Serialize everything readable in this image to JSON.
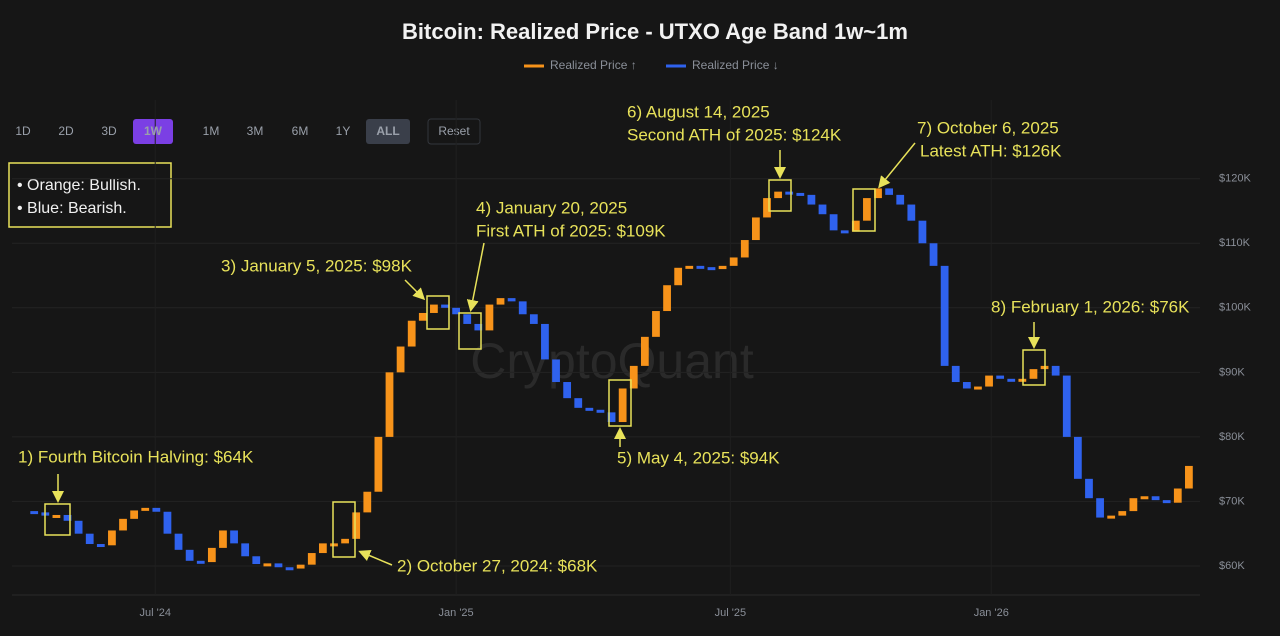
{
  "chart_data": {
    "type": "candlestick",
    "title": "Bitcoin: Realized Price - UTXO Age Band 1w~1m",
    "series": [
      {
        "name": "Realized Price ↑",
        "color": "#f7931a"
      },
      {
        "name": "Realized Price ↓",
        "color": "#2f62ee"
      }
    ],
    "values": [
      68500,
      68300,
      67800,
      67900,
      67000,
      65000,
      63400,
      63200,
      65500,
      67300,
      68600,
      69000,
      68400,
      65000,
      62500,
      60800,
      60600,
      62800,
      65500,
      63500,
      61500,
      60300,
      60400,
      59800,
      59600,
      60200,
      62000,
      63500,
      63500,
      64200,
      68300,
      71500,
      80000,
      90000,
      94000,
      98000,
      99200,
      100500,
      100000,
      99000,
      97500,
      96500,
      100500,
      101500,
      101000,
      99000,
      97500,
      92000,
      88500,
      86000,
      84500,
      84200,
      83800,
      82300,
      87500,
      91000,
      95500,
      99500,
      103500,
      106200,
      106500,
      106300,
      106000,
      106500,
      107800,
      110500,
      114000,
      117000,
      118000,
      117800,
      117500,
      116000,
      114500,
      112000,
      111800,
      113500,
      117000,
      118500,
      117500,
      116000,
      113500,
      110000,
      106500,
      91000,
      88500,
      87500,
      87800,
      89500,
      89000,
      88800,
      89000,
      90500,
      91000,
      89500,
      80000,
      73500,
      70500,
      67500,
      67800,
      68500,
      70500,
      70800,
      70200,
      69800,
      72000,
      75500
    ],
    "xlim": [
      -1,
      106
    ],
    "xticks": [
      {
        "value": 11.9,
        "label": "Jul '24"
      },
      {
        "value": 39,
        "label": "Jan '25"
      },
      {
        "value": 63.7,
        "label": "Jul '25"
      },
      {
        "value": 87.2,
        "label": "Jan '26"
      }
    ],
    "ylim": [
      55500,
      132200
    ],
    "yticks": [
      {
        "value": 60000,
        "label": "$60K"
      },
      {
        "value": 70000,
        "label": "$70K"
      },
      {
        "value": 80000,
        "label": "$80K"
      },
      {
        "value": 90000,
        "label": "$90K"
      },
      {
        "value": 100000,
        "label": "$100K"
      },
      {
        "value": 110000,
        "label": "$110K"
      },
      {
        "value": 120000,
        "label": "$120K"
      }
    ],
    "grid": true,
    "watermark": "CryptoQuant",
    "range_buttons": [
      "1D",
      "2D",
      "3D",
      "1W",
      "1M",
      "3M",
      "6M",
      "1Y",
      "ALL"
    ],
    "reset_button": "Reset",
    "note": [
      "• Orange: Bullish.",
      "• Blue: Bearish."
    ],
    "annotations": [
      [
        "1) Fourth Bitcoin Halving: $64K"
      ],
      [
        "2) October 27, 2024: $68K"
      ],
      [
        "3) January 5, 2025: $98K"
      ],
      [
        "4) January 20, 2025",
        "First ATH of 2025: $109K"
      ],
      [
        "5) May 4, 2025: $94K"
      ],
      [
        "6) August 14, 2025",
        "Second ATH of 2025: $124K"
      ],
      [
        "7) October 6, 2025",
        "Latest ATH: $126K"
      ],
      [
        "8) February 1, 2026: $76K"
      ]
    ]
  }
}
